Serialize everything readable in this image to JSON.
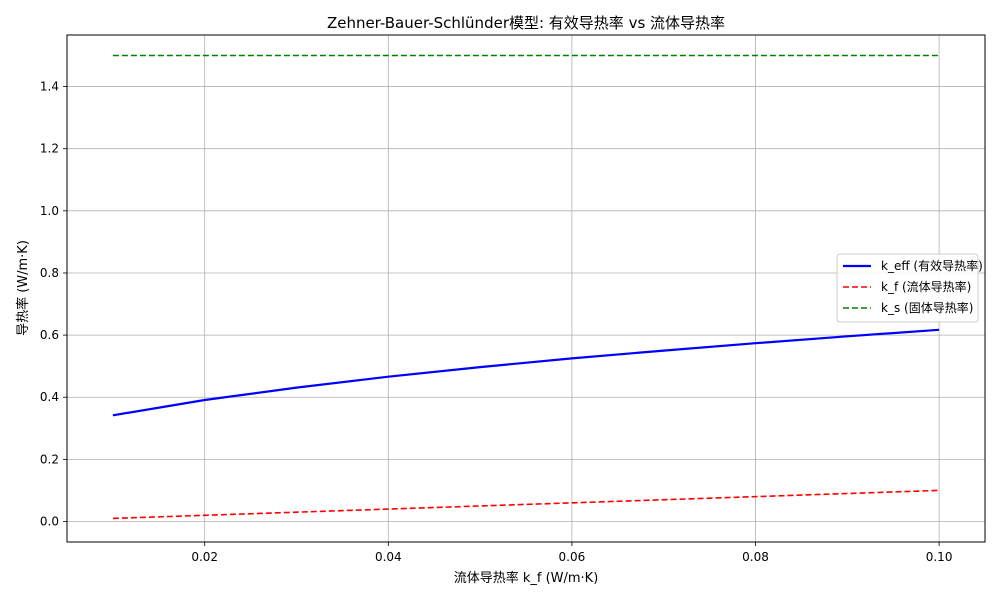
{
  "chart_data": {
    "type": "line",
    "title": "Zehner-Bauer-Schlünder模型: 有效导热率 vs 流体导热率",
    "xlabel": "流体导热率 k_f (W/m·K)",
    "ylabel": "导热率 (W/m·K)",
    "xlim": [
      0.005,
      0.105
    ],
    "ylim": [
      -0.066,
      1.566
    ],
    "x_ticks": [
      "0.02",
      "0.04",
      "0.06",
      "0.08",
      "0.10"
    ],
    "y_ticks": [
      "0.0",
      "0.2",
      "0.4",
      "0.6",
      "0.8",
      "1.0",
      "1.2",
      "1.4"
    ],
    "grid": true,
    "legend_position": "center-right",
    "series": [
      {
        "name": "k_eff (有效导热率)",
        "color": "#0000ff",
        "style": "solid",
        "x": [
          0.01,
          0.02,
          0.03,
          0.04,
          0.05,
          0.06,
          0.07,
          0.08,
          0.09,
          0.1
        ],
        "y": [
          0.342,
          0.391,
          0.431,
          0.466,
          0.497,
          0.525,
          0.55,
          0.574,
          0.596,
          0.617
        ]
      },
      {
        "name": "k_f (流体导热率)",
        "color": "#ff0000",
        "style": "dashed",
        "x": [
          0.01,
          0.1
        ],
        "y": [
          0.01,
          0.1
        ]
      },
      {
        "name": "k_s (固体导热率)",
        "color": "#008000",
        "style": "dashed",
        "x": [
          0.01,
          0.1
        ],
        "y": [
          1.5,
          1.5
        ]
      }
    ]
  }
}
